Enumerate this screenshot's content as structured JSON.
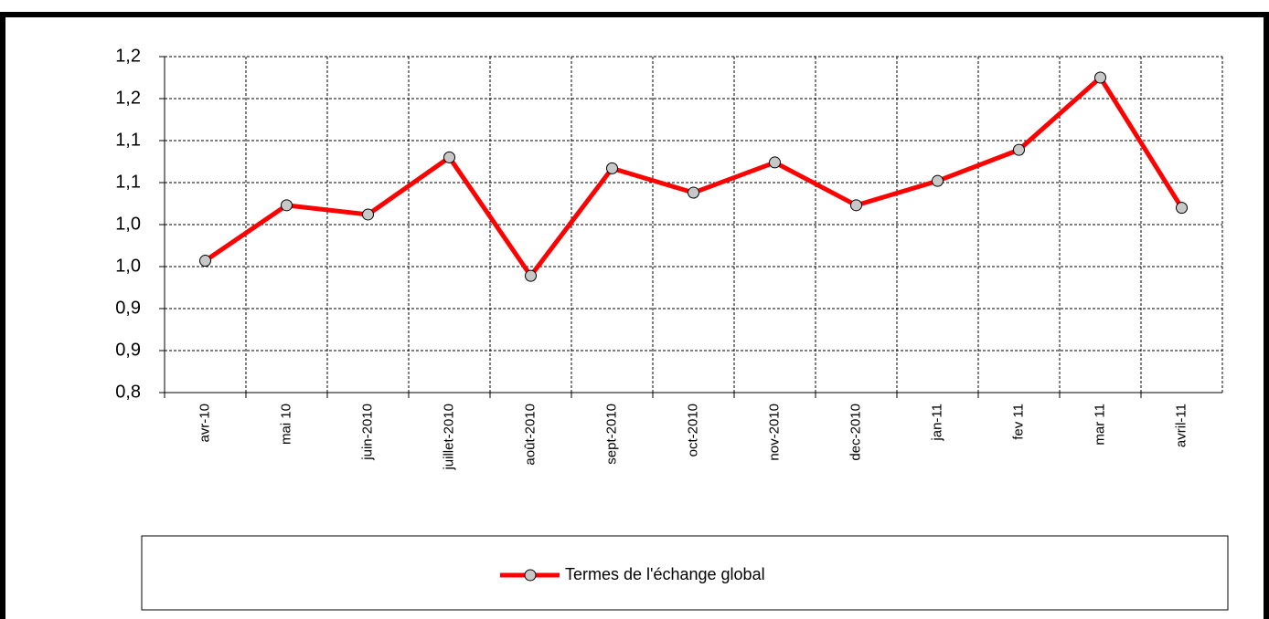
{
  "chart_data": {
    "type": "line",
    "categories": [
      "avr-10",
      "mai 10",
      "juin-2010",
      "juillet-2010",
      "août-2010",
      "sept-2010",
      "oct-2010",
      "nov-2010",
      "dec-2010",
      "jan-11",
      "fev 11",
      "mar 11",
      "avril-11"
    ],
    "series": [
      {
        "name": "Termes de l'échange global",
        "color": "#ff0000",
        "values": [
          0.957,
          1.023,
          1.012,
          1.08,
          0.939,
          1.067,
          1.038,
          1.074,
          1.023,
          1.052,
          1.089,
          1.175,
          1.02
        ]
      }
    ],
    "ylim": [
      0.8,
      1.2
    ],
    "yticks": [
      {
        "value": 0.8,
        "label": "0,8"
      },
      {
        "value": 0.85,
        "label": "0,9"
      },
      {
        "value": 0.9,
        "label": "0,9"
      },
      {
        "value": 0.95,
        "label": "1,0"
      },
      {
        "value": 1.0,
        "label": "1,0"
      },
      {
        "value": 1.05,
        "label": "1,1"
      },
      {
        "value": 1.1,
        "label": "1,1"
      },
      {
        "value": 1.15,
        "label": "1,2"
      },
      {
        "value": 1.2,
        "label": "1,2"
      }
    ],
    "grid": true,
    "legend": "bottom"
  }
}
